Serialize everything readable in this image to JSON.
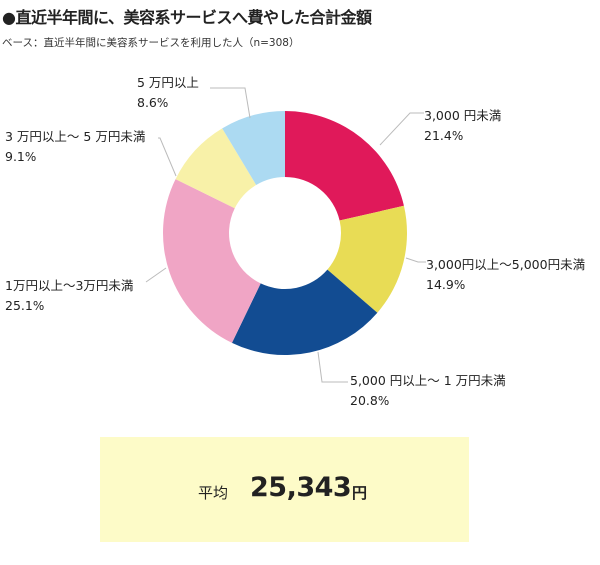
{
  "title": "●直近半年間に、美容系サービスへ費やした合計金額",
  "subtitle": "ベース：直近半年間に美容系サービスを利用した人（n=308）",
  "chart_data": {
    "type": "pie",
    "donut": true,
    "slices": [
      {
        "label": "3,000 円未満",
        "value": 21.4,
        "value_text": "21.4",
        "unit": "%",
        "color": "#e0195a"
      },
      {
        "label": "3,000円以上〜5,000円未満",
        "value": 14.9,
        "value_text": "14.9",
        "unit": "%",
        "color": "#e8dc55"
      },
      {
        "label": "5,000 円以上〜 1 万円未満",
        "value": 20.8,
        "value_text": "20.8",
        "unit": "%",
        "color": "#124c92"
      },
      {
        "label": "1万円以上〜3万円未満",
        "value": 25.1,
        "value_text": "25.1",
        "unit": "%",
        "color": "#f0a5c5"
      },
      {
        "label": "3 万円以上〜 5 万円未満",
        "value": 9.1,
        "value_text": "9.1",
        "unit": "%",
        "color": "#f8f1a8"
      },
      {
        "label": "5 万円以上",
        "value": 8.6,
        "value_text": "8.6",
        "unit": "%",
        "color": "#acdaf2"
      }
    ]
  },
  "average": {
    "label": "平均",
    "value": "25,343",
    "unit": "円"
  }
}
